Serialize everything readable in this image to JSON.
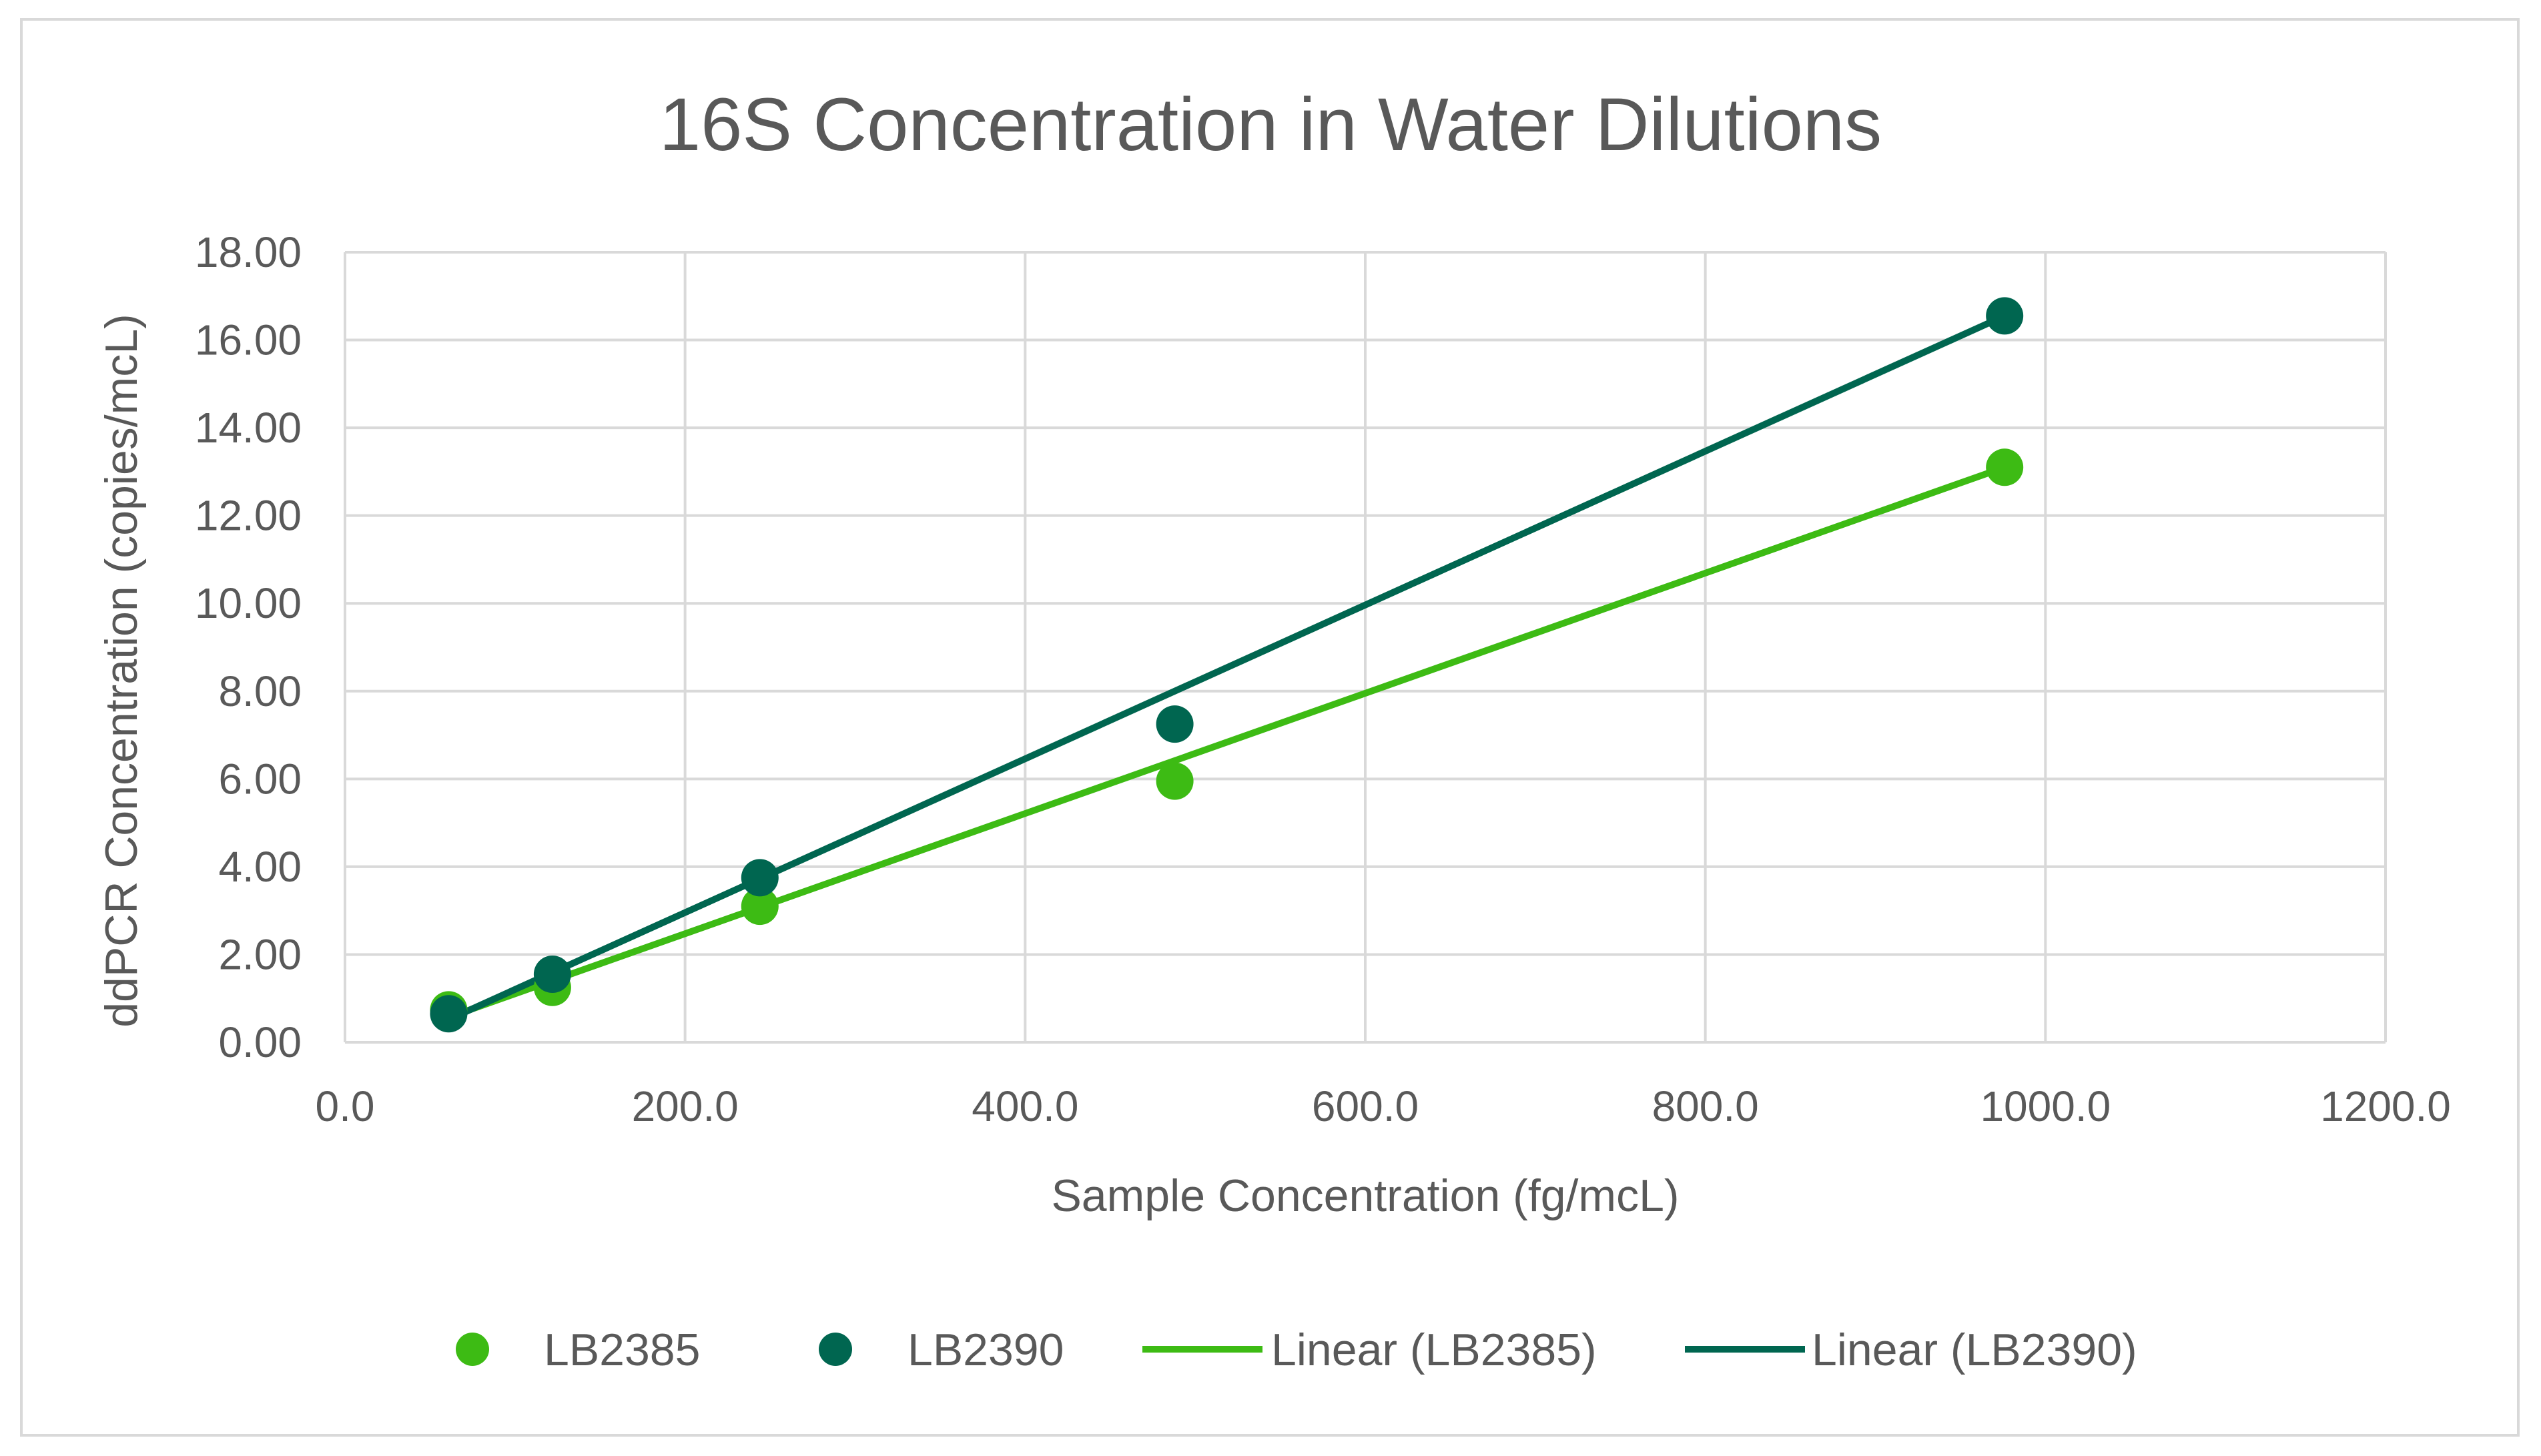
{
  "chart_data": {
    "type": "scatter",
    "title": "16S Concentration in Water Dilutions",
    "xlabel": "Sample Concentration (fg/mcL)",
    "ylabel": "ddPCR Concentration (copies/mcL)",
    "xlim": [
      0,
      1200
    ],
    "ylim": [
      0,
      18
    ],
    "x_ticks": [
      "0.0",
      "200.0",
      "400.0",
      "600.0",
      "800.0",
      "1000.0",
      "1200.0"
    ],
    "y_ticks": [
      "0.00",
      "2.00",
      "4.00",
      "6.00",
      "8.00",
      "10.00",
      "12.00",
      "14.00",
      "16.00",
      "18.00"
    ],
    "grid": true,
    "legend_position": "bottom",
    "series": [
      {
        "name": "LB2385",
        "color": "#3dbb14",
        "x": [
          61,
          122,
          244,
          488,
          976
        ],
        "y": [
          0.74,
          1.25,
          3.1,
          5.95,
          13.1
        ],
        "trendline": {
          "name": "Linear (LB2385)",
          "x": [
            61,
            976
          ],
          "y": [
            0.57,
            13.1
          ]
        }
      },
      {
        "name": "LB2390",
        "color": "#006650",
        "x": [
          61,
          122,
          244,
          488,
          976
        ],
        "y": [
          0.65,
          1.55,
          3.75,
          7.25,
          16.55
        ],
        "trendline": {
          "name": "Linear (LB2390)",
          "x": [
            61,
            976
          ],
          "y": [
            0.52,
            16.55
          ]
        }
      }
    ]
  }
}
